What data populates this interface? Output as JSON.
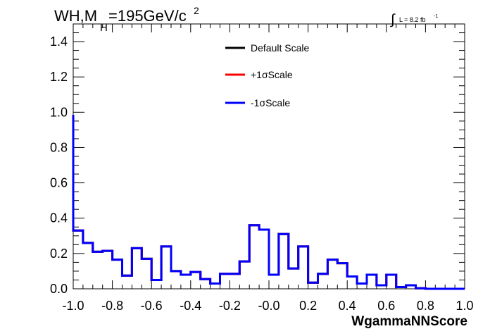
{
  "chart_data": {
    "type": "line",
    "step": true,
    "title_main": "WH,M",
    "title_sub": "H",
    "title_tail": "=195GeV/c",
    "title_sup": "2",
    "lumi_label": "L = 8.2 fb",
    "lumi_sup": "-1",
    "xlabel": "WgammaNNScore",
    "ylabel": "",
    "xlim": [
      -1.0,
      1.0
    ],
    "ylim": [
      0.0,
      1.5
    ],
    "x_ticks": [
      "-1.0",
      "-0.8",
      "-0.6",
      "-0.4",
      "-0.2",
      "-0.0",
      "0.2",
      "0.4",
      "0.6",
      "0.8",
      "1.0"
    ],
    "y_ticks": [
      "0.0",
      "0.2",
      "0.4",
      "0.6",
      "0.8",
      "1.0",
      "1.2",
      "1.4"
    ],
    "bin_edges": [
      -1.0,
      -0.95,
      -0.9,
      -0.85,
      -0.8,
      -0.75,
      -0.7,
      -0.65,
      -0.6,
      -0.55,
      -0.5,
      -0.45,
      -0.4,
      -0.35,
      -0.3,
      -0.25,
      -0.2,
      -0.15,
      -0.1,
      -0.05,
      0.0,
      0.05,
      0.1,
      0.15,
      0.2,
      0.25,
      0.3,
      0.35,
      0.4,
      0.45,
      0.5,
      0.55,
      0.6,
      0.65,
      0.7,
      0.75,
      0.8,
      0.85,
      0.9,
      0.95,
      1.0
    ],
    "legend_position": "top-center",
    "grid": false,
    "series": [
      {
        "name": "Default Scale",
        "color": "#000000",
        "values": [
          0.33,
          0.26,
          0.21,
          0.215,
          0.165,
          0.075,
          0.23,
          0.17,
          0.05,
          0.24,
          0.1,
          0.08,
          0.095,
          0.055,
          0.03,
          0.085,
          0.085,
          0.155,
          0.36,
          0.335,
          0.08,
          0.31,
          0.115,
          0.24,
          0.035,
          0.085,
          0.165,
          0.145,
          0.07,
          0.03,
          0.08,
          0.02,
          0.08,
          0.01,
          0.02,
          0.003,
          0.0,
          0.0,
          0.0,
          0.0
        ]
      },
      {
        "name": "+1σScale",
        "color": "#ff0000",
        "values": [
          0.33,
          0.26,
          0.21,
          0.215,
          0.165,
          0.075,
          0.23,
          0.17,
          0.05,
          0.24,
          0.1,
          0.08,
          0.095,
          0.055,
          0.03,
          0.085,
          0.085,
          0.155,
          0.36,
          0.335,
          0.08,
          0.31,
          0.115,
          0.24,
          0.035,
          0.085,
          0.165,
          0.145,
          0.07,
          0.03,
          0.08,
          0.02,
          0.08,
          0.01,
          0.02,
          0.003,
          0.0,
          0.0,
          0.0,
          0.0
        ]
      },
      {
        "name": "-1σScale",
        "color": "#0000ff",
        "values": [
          0.33,
          0.26,
          0.21,
          0.215,
          0.165,
          0.075,
          0.23,
          0.17,
          0.05,
          0.24,
          0.1,
          0.08,
          0.095,
          0.055,
          0.03,
          0.085,
          0.085,
          0.155,
          0.36,
          0.335,
          0.08,
          0.31,
          0.115,
          0.24,
          0.035,
          0.085,
          0.165,
          0.145,
          0.07,
          0.03,
          0.08,
          0.02,
          0.08,
          0.01,
          0.02,
          0.003,
          0.0,
          0.0,
          0.0,
          0.0
        ]
      }
    ],
    "first_bin_peak": 0.985
  }
}
